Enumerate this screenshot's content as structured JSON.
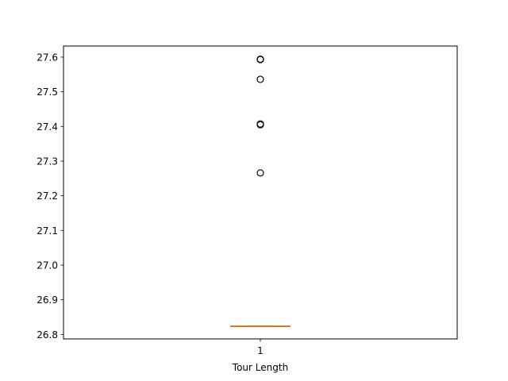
{
  "chart_data": {
    "type": "box",
    "title": "",
    "xlabel": "Tour Length",
    "ylabel": "",
    "x_tick_labels": [
      "1"
    ],
    "y_ticks": [
      26.8,
      26.9,
      27.0,
      27.1,
      27.2,
      27.3,
      27.4,
      27.5,
      27.6
    ],
    "y_tick_labels": [
      "26.8",
      "26.9",
      "27.0",
      "27.1",
      "27.2",
      "27.3",
      "27.4",
      "27.5",
      "27.6"
    ],
    "ylim": [
      26.787,
      27.632
    ],
    "grid": false,
    "legend": "none",
    "box": {
      "position": 1,
      "q1": 26.824,
      "median": 26.824,
      "q3": 26.824,
      "whisker_low": 26.824,
      "whisker_high": 26.824,
      "outliers": [
        27.266,
        27.405,
        27.407,
        27.536,
        27.593,
        27.594
      ]
    },
    "colors": {
      "median": "#ff7f0e",
      "box": "#000000",
      "outlier_edge": "#000000"
    }
  }
}
